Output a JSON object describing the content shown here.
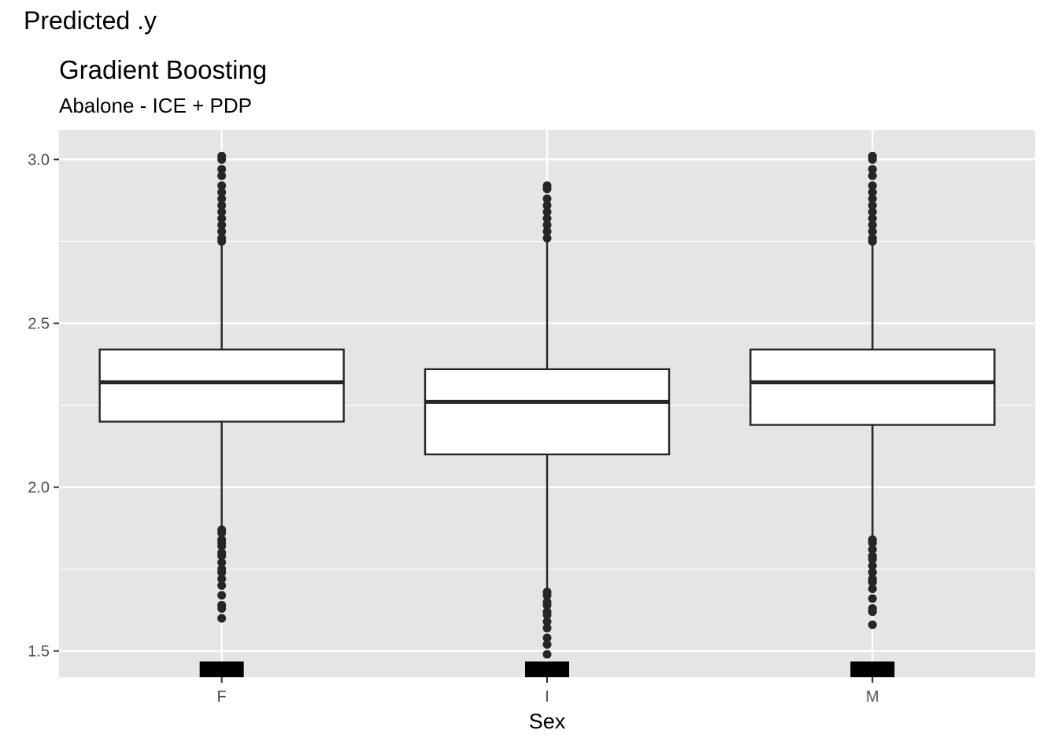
{
  "header": {
    "top_label": "Predicted .y",
    "title": "Gradient Boosting",
    "subtitle": "Abalone - ICE + PDP"
  },
  "colors": {
    "panel_bg": "#e5e5e5",
    "grid": "#ffffff",
    "box_fill": "#ffffff",
    "box_stroke": "#262626",
    "outlier": "#262626",
    "rug": "#000000",
    "tick_text": "#4d4d4d"
  },
  "chart_data": {
    "type": "boxplot",
    "title": "Gradient Boosting",
    "subtitle": "Abalone - ICE + PDP",
    "xlabel": "Sex",
    "ylabel": "",
    "categories": [
      "F",
      "I",
      "M"
    ],
    "ylim": [
      1.42,
      3.09
    ],
    "yticks": [
      1.5,
      2.0,
      2.5,
      3.0
    ],
    "ytick_labels": [
      "1.5",
      "2.0",
      "2.5",
      "3.0"
    ],
    "grid": true,
    "boxes": [
      {
        "category": "F",
        "whisker_low": 1.88,
        "q1": 2.2,
        "median": 2.32,
        "q3": 2.42,
        "whisker_high": 2.74,
        "outliers": [
          1.6,
          1.63,
          1.64,
          1.67,
          1.7,
          1.72,
          1.74,
          1.75,
          1.77,
          1.79,
          1.8,
          1.82,
          1.83,
          1.84,
          1.86,
          1.87,
          2.75,
          2.76,
          2.78,
          2.8,
          2.82,
          2.84,
          2.86,
          2.88,
          2.9,
          2.92,
          2.95,
          2.97,
          3.0,
          3.01
        ]
      },
      {
        "category": "I",
        "whisker_low": 1.69,
        "q1": 2.1,
        "median": 2.26,
        "q3": 2.36,
        "whisker_high": 2.76,
        "outliers": [
          1.49,
          1.52,
          1.54,
          1.57,
          1.59,
          1.61,
          1.62,
          1.64,
          1.65,
          1.67,
          1.68,
          2.76,
          2.78,
          2.8,
          2.82,
          2.84,
          2.86,
          2.88,
          2.91,
          2.92
        ]
      },
      {
        "category": "M",
        "whisker_low": 1.85,
        "q1": 2.19,
        "median": 2.32,
        "q3": 2.42,
        "whisker_high": 2.74,
        "outliers": [
          1.58,
          1.62,
          1.63,
          1.66,
          1.69,
          1.71,
          1.72,
          1.74,
          1.76,
          1.78,
          1.79,
          1.81,
          1.83,
          1.84,
          2.75,
          2.76,
          2.78,
          2.8,
          2.82,
          2.84,
          2.86,
          2.88,
          2.9,
          2.92,
          2.95,
          2.97,
          3.0,
          3.01
        ]
      }
    ],
    "rug": {
      "categories": [
        "F",
        "I",
        "M"
      ]
    }
  }
}
